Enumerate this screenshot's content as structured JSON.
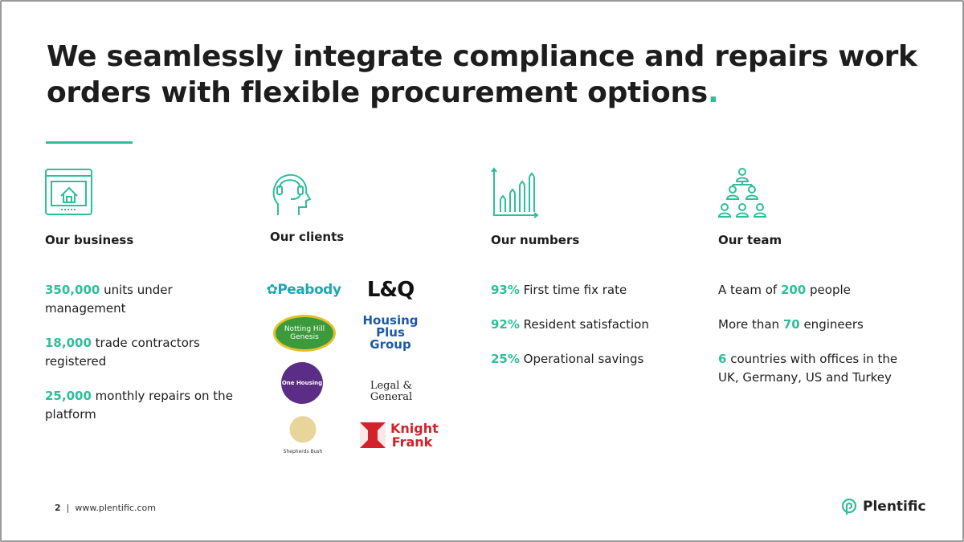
{
  "header": {
    "title": "We seamlessly integrate compliance and repairs work orders with flexible procurement options",
    "title_mark": "."
  },
  "columns": [
    {
      "heading": "Our business",
      "items": [
        [
          {
            "text": "350,000",
            "em": true
          },
          {
            "text": " units under management"
          }
        ],
        [
          {
            "text": "18,000",
            "em": true
          },
          {
            "text": " trade contractors registered"
          }
        ],
        [
          {
            "text": "25,000",
            "em": true
          },
          {
            "text": " monthly repairs on the platform"
          }
        ]
      ]
    },
    {
      "heading": "Our clients",
      "items": []
    },
    {
      "heading": "Our numbers",
      "items": [
        [
          {
            "text": "93%",
            "em": true
          },
          {
            "text": " First time fix rate"
          }
        ],
        [
          {
            "text": "92%",
            "em": true
          },
          {
            "text": " Resident satisfaction"
          }
        ],
        [
          {
            "text": "25%",
            "em": true
          },
          {
            "text": " Operational savings"
          }
        ]
      ]
    },
    {
      "heading": "Our team",
      "items": [
        [
          {
            "text": "A team of "
          },
          {
            "text": "200",
            "em": true
          },
          {
            "text": " people"
          }
        ],
        [
          {
            "text": "More than "
          },
          {
            "text": "70",
            "em": true
          },
          {
            "text": " engineers"
          }
        ],
        [
          {
            "text": "6",
            "em": true
          },
          {
            "text": " countries with offices in the UK, Germany, US and Turkey"
          }
        ]
      ]
    }
  ],
  "clients": [
    "Peabody",
    "L&Q",
    "Notting Hill Genesis",
    "Housing Plus Group",
    "One Housing",
    "Legal & General",
    "Shepherds Bush",
    "Knight Frank"
  ],
  "footer": {
    "page": "2",
    "url": "www.plentific.com",
    "brand": "Plentific"
  }
}
